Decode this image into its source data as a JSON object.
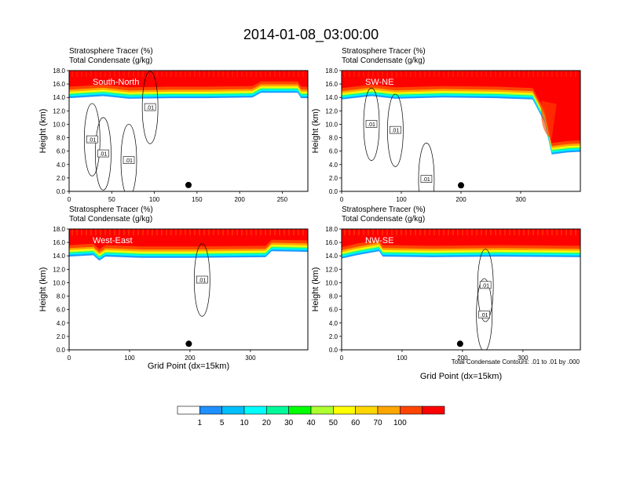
{
  "figure": {
    "title": "2014-01-08_03:00:00",
    "label_line1": "Stratosphere Tracer   (%)",
    "label_line2": "Total Condensate   (g/kg)",
    "contour_note": "Total Condensate Contours: .01 to .01 by .000",
    "xlabel": "Grid Point (dx=15km)"
  },
  "chart_data": [
    {
      "type": "heatmap",
      "name": "South-North",
      "xlim": [
        0,
        280
      ],
      "ylim": [
        0.0,
        18.0
      ],
      "x_ticks": [
        "0",
        "50",
        "100",
        "150",
        "200",
        "250"
      ],
      "y_ticks": [
        "0.0",
        "2.0",
        "4.0",
        "6.0",
        "8.0",
        "10.0",
        "12.0",
        "14.0",
        "16.0",
        "18.0"
      ],
      "ylabel": "Height (km)",
      "tropopause": [
        [
          0,
          15.6
        ],
        [
          40,
          15.9
        ],
        [
          70,
          15.5
        ],
        [
          120,
          15.6
        ],
        [
          160,
          15.6
        ],
        [
          215,
          15.7
        ],
        [
          225,
          16.4
        ],
        [
          268,
          16.4
        ],
        [
          272,
          15.6
        ],
        [
          280,
          15.6
        ]
      ],
      "contour_labels": [
        {
          "text": ".01",
          "x": 27,
          "y": 7.7
        },
        {
          "text": ".01",
          "x": 40,
          "y": 5.6
        },
        {
          "text": ".01",
          "x": 70,
          "y": 4.6
        },
        {
          "text": ".01",
          "x": 95,
          "y": 12.5
        }
      ],
      "marker": {
        "x": 140,
        "y": 0.95
      }
    },
    {
      "type": "heatmap",
      "name": "SW-NE",
      "xlim": [
        0,
        400
      ],
      "ylim": [
        0.0,
        18.0
      ],
      "x_ticks": [
        "0",
        "100",
        "200",
        "300"
      ],
      "y_ticks": [
        "0.0",
        "2.0",
        "4.0",
        "6.0",
        "8.0",
        "10.0",
        "12.0",
        "14.0",
        "16.0",
        "18.0"
      ],
      "ylabel": "Height (km)",
      "tropopause": [
        [
          0,
          15.4
        ],
        [
          50,
          15.9
        ],
        [
          90,
          15.5
        ],
        [
          170,
          15.7
        ],
        [
          260,
          15.6
        ],
        [
          320,
          15.4
        ],
        [
          340,
          12.0
        ],
        [
          352,
          7.2
        ],
        [
          378,
          7.5
        ],
        [
          400,
          7.6
        ]
      ],
      "contour_labels": [
        {
          "text": ".01",
          "x": 50,
          "y": 10.0
        },
        {
          "text": ".01",
          "x": 90,
          "y": 9.1
        },
        {
          "text": ".01",
          "x": 142,
          "y": 1.8
        }
      ],
      "marker": {
        "x": 200,
        "y": 0.9
      }
    },
    {
      "type": "heatmap",
      "name": "West-East",
      "xlim": [
        0,
        395
      ],
      "ylim": [
        0.0,
        18.0
      ],
      "x_ticks": [
        "0",
        "100",
        "200",
        "300"
      ],
      "y_ticks": [
        "0.0",
        "2.0",
        "4.0",
        "6.0",
        "8.0",
        "10.0",
        "12.0",
        "14.0",
        "16.0",
        "18.0"
      ],
      "ylabel": "Height (km)",
      "tropopause": [
        [
          0,
          15.6
        ],
        [
          40,
          15.8
        ],
        [
          50,
          15.0
        ],
        [
          60,
          15.6
        ],
        [
          120,
          15.4
        ],
        [
          200,
          15.4
        ],
        [
          325,
          15.5
        ],
        [
          335,
          16.4
        ],
        [
          395,
          16.3
        ]
      ],
      "contour_labels": [
        {
          "text": ".01",
          "x": 220,
          "y": 10.4
        }
      ],
      "marker": {
        "x": 198,
        "y": 0.9
      }
    },
    {
      "type": "heatmap",
      "name": "NW-SE",
      "xlim": [
        0,
        395
      ],
      "ylim": [
        0.0,
        18.0
      ],
      "x_ticks": [
        "0",
        "100",
        "200",
        "300"
      ],
      "y_ticks": [
        "0.0",
        "2.0",
        "4.0",
        "6.0",
        "8.0",
        "10.0",
        "12.0",
        "14.0",
        "16.0",
        "18.0"
      ],
      "ylabel": "Height (km)",
      "tropopause": [
        [
          0,
          15.3
        ],
        [
          25,
          15.8
        ],
        [
          62,
          16.4
        ],
        [
          68,
          15.6
        ],
        [
          150,
          15.5
        ],
        [
          260,
          15.6
        ],
        [
          395,
          15.5
        ]
      ],
      "contour_labels": [
        {
          "text": ".01",
          "x": 238,
          "y": 9.6
        },
        {
          "text": ".01",
          "x": 236,
          "y": 5.2
        }
      ],
      "marker": {
        "x": 196,
        "y": 0.9
      }
    }
  ],
  "colorbar": {
    "levels": [
      "1",
      "5",
      "10",
      "20",
      "30",
      "40",
      "50",
      "60",
      "70",
      "100"
    ],
    "colors": [
      "#ffffff",
      "#1e90ff",
      "#00bfff",
      "#00ffff",
      "#00fa9a",
      "#00ff00",
      "#adff2f",
      "#ffff00",
      "#ffd700",
      "#ffa500",
      "#ff4500",
      "#ff0000"
    ]
  }
}
